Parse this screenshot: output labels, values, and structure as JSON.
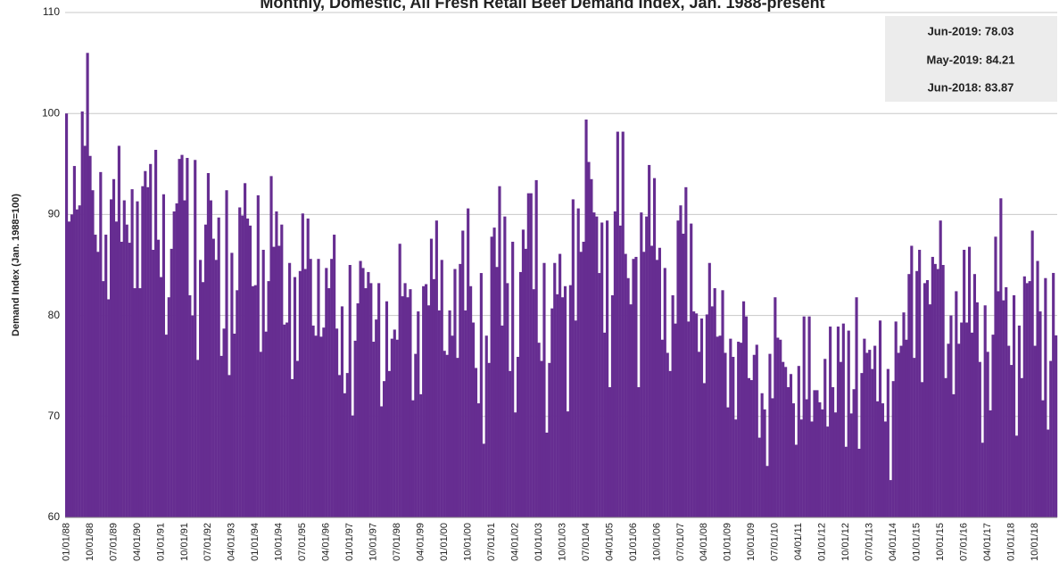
{
  "chart_data": {
    "type": "bar",
    "title": "Monthly, Domestic, All Fresh Retail Beef Demand Index, Jan. 1988-present",
    "y_label": "Demand Index (Jan. 1988=100)",
    "annotations": [
      "Jun-2019: 78.03",
      "May-2019: 84.21",
      "Jun-2018: 83.87"
    ],
    "color": "#662d91",
    "grid": true,
    "ylim": [
      60,
      110
    ],
    "yticks": [
      60,
      70,
      80,
      90,
      100,
      110
    ],
    "categories": [
      "01/01/88",
      null,
      null,
      null,
      null,
      null,
      null,
      null,
      null,
      "10/01/88",
      null,
      null,
      null,
      null,
      null,
      null,
      null,
      null,
      "07/01/89",
      null,
      null,
      null,
      null,
      null,
      null,
      null,
      null,
      "04/01/90",
      null,
      null,
      null,
      null,
      null,
      null,
      null,
      null,
      "01/01/91",
      null,
      null,
      null,
      null,
      null,
      null,
      null,
      null,
      "10/01/91",
      null,
      null,
      null,
      null,
      null,
      null,
      null,
      null,
      "07/01/92",
      null,
      null,
      null,
      null,
      null,
      null,
      null,
      null,
      "04/01/93",
      null,
      null,
      null,
      null,
      null,
      null,
      null,
      null,
      "01/01/94",
      null,
      null,
      null,
      null,
      null,
      null,
      null,
      null,
      "10/01/94",
      null,
      null,
      null,
      null,
      null,
      null,
      null,
      null,
      "07/01/95",
      null,
      null,
      null,
      null,
      null,
      null,
      null,
      null,
      "04/01/96",
      null,
      null,
      null,
      null,
      null,
      null,
      null,
      null,
      "01/01/97",
      null,
      null,
      null,
      null,
      null,
      null,
      null,
      null,
      "10/01/97",
      null,
      null,
      null,
      null,
      null,
      null,
      null,
      null,
      "07/01/98",
      null,
      null,
      null,
      null,
      null,
      null,
      null,
      null,
      "04/01/99",
      null,
      null,
      null,
      null,
      null,
      null,
      null,
      null,
      "01/01/00",
      null,
      null,
      null,
      null,
      null,
      null,
      null,
      null,
      "10/01/00",
      null,
      null,
      null,
      null,
      null,
      null,
      null,
      null,
      "07/01/01",
      null,
      null,
      null,
      null,
      null,
      null,
      null,
      null,
      "04/01/02",
      null,
      null,
      null,
      null,
      null,
      null,
      null,
      null,
      "01/01/03",
      null,
      null,
      null,
      null,
      null,
      null,
      null,
      null,
      "10/01/03",
      null,
      null,
      null,
      null,
      null,
      null,
      null,
      null,
      "07/01/04",
      null,
      null,
      null,
      null,
      null,
      null,
      null,
      null,
      "04/01/05",
      null,
      null,
      null,
      null,
      null,
      null,
      null,
      null,
      "01/01/06",
      null,
      null,
      null,
      null,
      null,
      null,
      null,
      null,
      "10/01/06",
      null,
      null,
      null,
      null,
      null,
      null,
      null,
      null,
      "07/01/07",
      null,
      null,
      null,
      null,
      null,
      null,
      null,
      null,
      "04/01/08",
      null,
      null,
      null,
      null,
      null,
      null,
      null,
      null,
      "01/01/09",
      null,
      null,
      null,
      null,
      null,
      null,
      null,
      null,
      "10/01/09",
      null,
      null,
      null,
      null,
      null,
      null,
      null,
      null,
      "07/01/10",
      null,
      null,
      null,
      null,
      null,
      null,
      null,
      null,
      "04/01/11",
      null,
      null,
      null,
      null,
      null,
      null,
      null,
      null,
      "01/01/12",
      null,
      null,
      null,
      null,
      null,
      null,
      null,
      null,
      "10/01/12",
      null,
      null,
      null,
      null,
      null,
      null,
      null,
      null,
      "07/01/13",
      null,
      null,
      null,
      null,
      null,
      null,
      null,
      null,
      "04/01/14",
      null,
      null,
      null,
      null,
      null,
      null,
      null,
      null,
      "01/01/15",
      null,
      null,
      null,
      null,
      null,
      null,
      null,
      null,
      "10/01/15",
      null,
      null,
      null,
      null,
      null,
      null,
      null,
      null,
      "07/01/16",
      null,
      null,
      null,
      null,
      null,
      null,
      null,
      null,
      "04/01/17",
      null,
      null,
      null,
      null,
      null,
      null,
      null,
      null,
      "01/01/18",
      null,
      null,
      null,
      null,
      null,
      null,
      null,
      null,
      "10/01/18",
      null,
      null,
      null,
      null,
      null,
      null,
      null,
      null
    ],
    "values": [
      100,
      89.3,
      90,
      94.8,
      90.5,
      90.9,
      100.2,
      96.8,
      106,
      95.8,
      92.4,
      88,
      86.3,
      94.2,
      83.4,
      88,
      81.6,
      91.5,
      93.5,
      89.3,
      96.8,
      87.3,
      91.4,
      89,
      87.2,
      92.5,
      82.7,
      91.3,
      82.7,
      92.8,
      94.3,
      92.7,
      95,
      86.5,
      96.4,
      87.5,
      83.8,
      92,
      78.1,
      81.8,
      86.6,
      90.3,
      91.1,
      95.5,
      95.9,
      91.4,
      95.6,
      82,
      80,
      95.4,
      75.6,
      85.5,
      83.3,
      89,
      94.1,
      91.4,
      87.6,
      85.5,
      89.7,
      76,
      78.7,
      92.4,
      74.1,
      86.2,
      78.2,
      82.5,
      90.7,
      89.9,
      93.1,
      89.6,
      88.9,
      82.9,
      83,
      91.9,
      76.4,
      86.5,
      78.4,
      83.4,
      93.8,
      86.8,
      90.3,
      86.9,
      89,
      79.1,
      79.3,
      85.2,
      73.7,
      83.8,
      75.5,
      84.4,
      90.1,
      84.6,
      89.6,
      85.6,
      79,
      78,
      85.6,
      77.9,
      78.8,
      84.7,
      82.7,
      85.6,
      88,
      78.7,
      74.1,
      80.9,
      72.3,
      74.3,
      85,
      70.1,
      77.5,
      81.2,
      85.4,
      84.7,
      82.7,
      84.3,
      83.2,
      77.4,
      79.6,
      83.2,
      71,
      73.5,
      81.4,
      74.5,
      77.7,
      78.6,
      77.6,
      87.1,
      81.9,
      83.2,
      81.8,
      82.6,
      71.6,
      76.2,
      80.4,
      72.2,
      82.9,
      83.1,
      81,
      87.6,
      83.6,
      89.4,
      80.5,
      85.5,
      76.5,
      76.1,
      80.5,
      78,
      84.6,
      75.8,
      85.1,
      88.4,
      80.5,
      90.6,
      82.9,
      79.3,
      74.8,
      71.3,
      84.2,
      67.3,
      78,
      75.3,
      87.8,
      88.7,
      84.8,
      92.8,
      79,
      89.8,
      83.2,
      74.5,
      87.3,
      70.4,
      75.9,
      84.3,
      88.5,
      86.6,
      92.1,
      92.1,
      82.6,
      93.4,
      77.3,
      75.5,
      85.2,
      68.4,
      75.3,
      80.7,
      85.2,
      82.1,
      86.1,
      81.8,
      82.9,
      70.5,
      83,
      91.5,
      79.5,
      90.6,
      86.3,
      87.3,
      99.4,
      95.2,
      93.5,
      90.2,
      89.8,
      84.2,
      89.2,
      78.3,
      89.4,
      72.9,
      82,
      90.3,
      98.2,
      88.9,
      98.2,
      86.1,
      83.7,
      81.1,
      85.6,
      85.8,
      72.9,
      90.2,
      86.3,
      89.8,
      94.9,
      86.9,
      93.6,
      85.5,
      86.7,
      77.6,
      84.7,
      76.3,
      74.5,
      82,
      79.2,
      89.4,
      90.9,
      88.1,
      92.7,
      79.4,
      89.1,
      80.4,
      80.2,
      76.4,
      79.7,
      73.3,
      80.1,
      85.2,
      80.9,
      82.7,
      77.9,
      78,
      82.5,
      76.3,
      70.9,
      77.7,
      75.9,
      69.7,
      77.4,
      77.3,
      81.4,
      79.9,
      73.8,
      73.6,
      76.1,
      77.1,
      67.9,
      72.3,
      70.7,
      65.1,
      76.2,
      71.8,
      81.8,
      77.8,
      77.6,
      75.4,
      74.9,
      72.9,
      74.2,
      71.3,
      67.2,
      75,
      69.7,
      79.9,
      71.7,
      79.9,
      69.5,
      72.6,
      72.6,
      71.4,
      70.7,
      75.7,
      69,
      78.9,
      72.9,
      70.4,
      78.9,
      75.4,
      79.2,
      67,
      78.5,
      70.3,
      72.7,
      81.8,
      66.8,
      74.3,
      77.7,
      76.3,
      76.6,
      74.7,
      77,
      71.5,
      79.5,
      71.3,
      69.5,
      74.7,
      63.7,
      73.5,
      79.4,
      76.3,
      77,
      80.3,
      77.6,
      84.1,
      86.9,
      75.8,
      84.4,
      86.5,
      73.4,
      83.2,
      83.5,
      81.1,
      85.8,
      85.1,
      84.6,
      89.4,
      85,
      73.8,
      77.2,
      80,
      72.2,
      82.4,
      77.2,
      79.3,
      86.5,
      79.3,
      86.8,
      78.3,
      84.1,
      81.3,
      75.4,
      67.4,
      81,
      76.4,
      70.6,
      78.1,
      87.8,
      82.4,
      91.6,
      81.5,
      82.8,
      77,
      75.1,
      82,
      68.1,
      79,
      73.8,
      83.87,
      83.2,
      83.4,
      88.4,
      77,
      85.4,
      80.4,
      71.6,
      83.7,
      68.7,
      75.5,
      84.21,
      78.03
    ]
  }
}
